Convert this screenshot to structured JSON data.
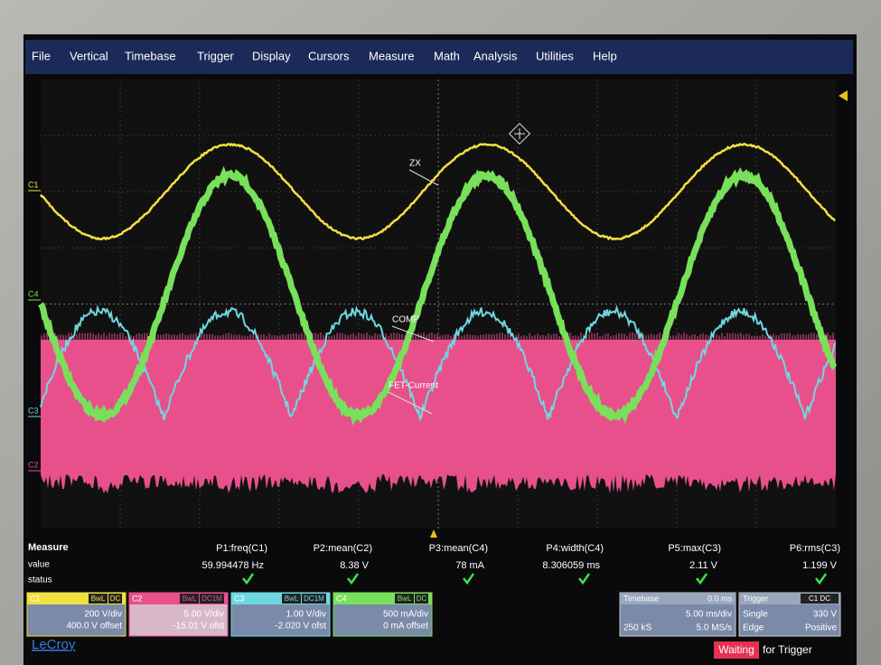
{
  "menu": [
    "File",
    "Vertical",
    "Timebase",
    "Trigger",
    "Display",
    "Cursors",
    "Measure",
    "Math",
    "Analysis",
    "Utilities",
    "Help"
  ],
  "trace_labels": [
    "C1",
    "C4",
    "C3",
    "C2"
  ],
  "annotations": [
    "ZX",
    "COMP",
    "FET-Current"
  ],
  "measure": {
    "title": "Measure",
    "row_labels": [
      "value",
      "status"
    ],
    "columns": [
      {
        "name": "P1:freq(C1)",
        "value": "59.994478 Hz"
      },
      {
        "name": "P2:mean(C2)",
        "value": "8.38 V"
      },
      {
        "name": "P3:mean(C4)",
        "value": "78 mA"
      },
      {
        "name": "P4:width(C4)",
        "value": "8.306059 ms"
      },
      {
        "name": "P5:max(C3)",
        "value": "2.11 V"
      },
      {
        "name": "P6:rms(C3)",
        "value": "1.199 V"
      }
    ]
  },
  "channels": [
    {
      "name": "C1",
      "tags": [
        "BwL",
        "DC"
      ],
      "lines": [
        "200 V/div",
        "400.0 V offset"
      ]
    },
    {
      "name": "C2",
      "tags": [
        "BwL",
        "DC1M"
      ],
      "lines": [
        "5.00 V/div",
        "-15.01 V ofst"
      ]
    },
    {
      "name": "C3",
      "tags": [
        "BwL",
        "DC1M"
      ],
      "lines": [
        "1.00 V/div",
        "-2.020 V ofst"
      ]
    },
    {
      "name": "C4",
      "tags": [
        "BwL",
        "DC"
      ],
      "lines": [
        "500 mA/div",
        "0 mA offset"
      ]
    }
  ],
  "timebase": {
    "title": "Timebase",
    "delay": "0.0 ms",
    "scale": "5.00 ms/div",
    "samples": "250 kS",
    "rate": "5.0 MS/s"
  },
  "trigger": {
    "title": "Trigger",
    "source": "C1 DC",
    "mode": "Single",
    "level": "330 V",
    "type": "Edge",
    "slope": "Positive"
  },
  "brand": "LeCroy",
  "status": {
    "highlight": "Waiting",
    "rest": "for Trigger"
  }
}
